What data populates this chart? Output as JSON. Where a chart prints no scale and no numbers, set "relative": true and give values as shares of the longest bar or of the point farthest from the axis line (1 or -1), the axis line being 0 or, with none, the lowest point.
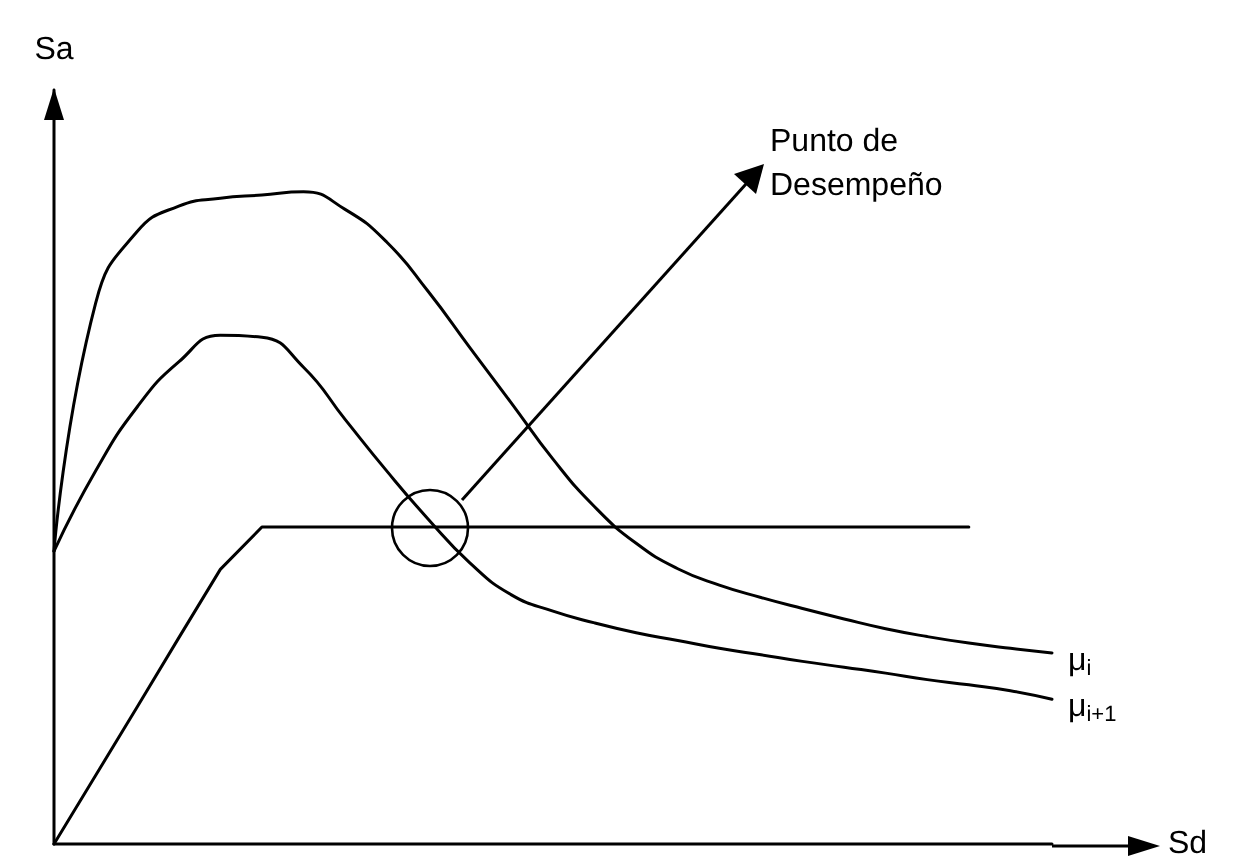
{
  "chart_data": {
    "type": "line",
    "relative": true,
    "xlabel": "Sd",
    "ylabel": "Sa",
    "categories": [
      null,
      null,
      null,
      null,
      null,
      null,
      null,
      null,
      null,
      null,
      null,
      null,
      null,
      null,
      null,
      null,
      null,
      null,
      null,
      null,
      null,
      null,
      null,
      null,
      null
    ],
    "series": [
      {
        "name": "μ$_{i}$",
        "color": "#000000",
        "values": [
          0.449,
          0.829,
          0.939,
          0.978,
          0.99,
          0.995,
          1,
          0.973,
          0.923,
          0.847,
          0.761,
          0.676,
          0.59,
          0.517,
          0.461,
          0.422,
          0.397,
          0.378,
          0.361,
          0.345,
          0.33,
          0.318,
          0.308,
          0.3,
          0.293
        ]
      },
      {
        "name": "μ$_{i+1}$",
        "color": "#000000",
        "values": [
          0.449,
          0.572,
          0.67,
          0.739,
          0.78,
          0.777,
          0.731,
          0.651,
          0.572,
          0.498,
          0.431,
          0.382,
          0.357,
          0.339,
          0.324,
          0.312,
          0.3,
          0.29,
          0.28,
          0.271,
          0.262,
          0.252,
          0.244,
          0.235,
          0.222
        ]
      },
      {
        "color": "#000000",
        "values": [
          0,
          0.105,
          0.21,
          0.316,
          0.421,
          0.486,
          0.486,
          0.486,
          0.486,
          0.486,
          0.486,
          0.486,
          0.486,
          0.486,
          0.486,
          0.486,
          0.486,
          0.486,
          0.486,
          0.486,
          0.486,
          0.486,
          0.486,
          null,
          null
        ]
      }
    ],
    "annotations": [
      "Punto de Desempeño"
    ],
    "grid": false,
    "legend": false,
    "marker": "none",
    "line_style": "solid"
  }
}
